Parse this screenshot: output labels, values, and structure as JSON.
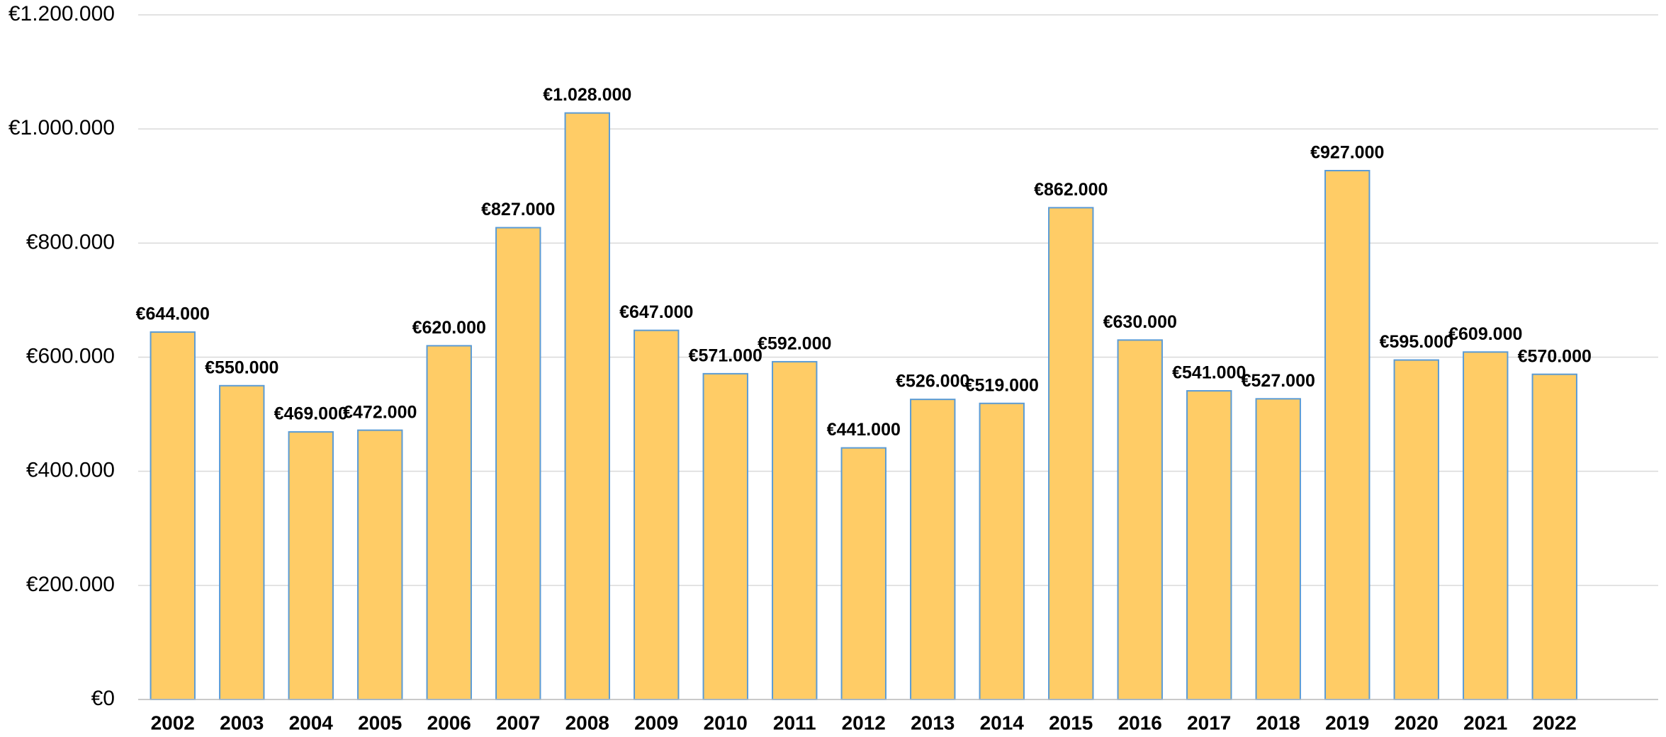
{
  "chart_data": {
    "type": "bar",
    "categories": [
      "2002",
      "2003",
      "2004",
      "2005",
      "2006",
      "2007",
      "2008",
      "2009",
      "2010",
      "2011",
      "2012",
      "2013",
      "2014",
      "2015",
      "2016",
      "2017",
      "2018",
      "2019",
      "2020",
      "2021",
      "2022"
    ],
    "values": [
      644000,
      550000,
      469000,
      472000,
      620000,
      827000,
      1028000,
      647000,
      571000,
      592000,
      441000,
      526000,
      519000,
      862000,
      630000,
      541000,
      527000,
      927000,
      595000,
      609000,
      570000
    ],
    "value_labels": [
      "€644.000",
      "€550.000",
      "€469.000",
      "€472.000",
      "€620.000",
      "€827.000",
      "€1.028.000",
      "€647.000",
      "€571.000",
      "€592.000",
      "€441.000",
      "€526.000",
      "€519.000",
      "€862.000",
      "€630.000",
      "€541.000",
      "€527.000",
      "€927.000",
      "€595.000",
      "€609.000",
      "€570.000"
    ],
    "color": "#FFCC66",
    "edge_color": "#5B9BD5",
    "ylim": [
      0,
      1200000
    ],
    "yticks": [
      {
        "value": 0,
        "label": "€0"
      },
      {
        "value": 200000,
        "label": "€200.000"
      },
      {
        "value": 400000,
        "label": "€400.000"
      },
      {
        "value": 600000,
        "label": "€600.000"
      },
      {
        "value": 800000,
        "label": "€800.000"
      },
      {
        "value": 1000000,
        "label": "€1.000.000"
      },
      {
        "value": 1200000,
        "label": "€1.200.000"
      }
    ],
    "grid": true
  }
}
